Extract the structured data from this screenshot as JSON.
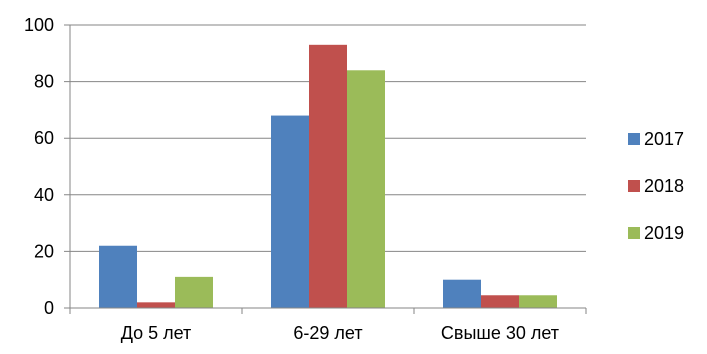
{
  "chart_data": {
    "type": "bar",
    "title": "",
    "xlabel": "",
    "ylabel": "",
    "categories": [
      "До 5 лет",
      "6-29 лет",
      "Свыше 30 лет"
    ],
    "series": [
      {
        "name": "2017",
        "color": "#4f81bd",
        "values": [
          22,
          68,
          10
        ]
      },
      {
        "name": "2018",
        "color": "#c0504d",
        "values": [
          2,
          93,
          4.5
        ]
      },
      {
        "name": "2019",
        "color": "#9bbb59",
        "values": [
          11,
          84,
          4.5
        ]
      }
    ],
    "ylim": [
      0,
      100
    ],
    "yticks": [
      0,
      20,
      40,
      60,
      80,
      100
    ],
    "grid": true,
    "legend_position": "right"
  }
}
